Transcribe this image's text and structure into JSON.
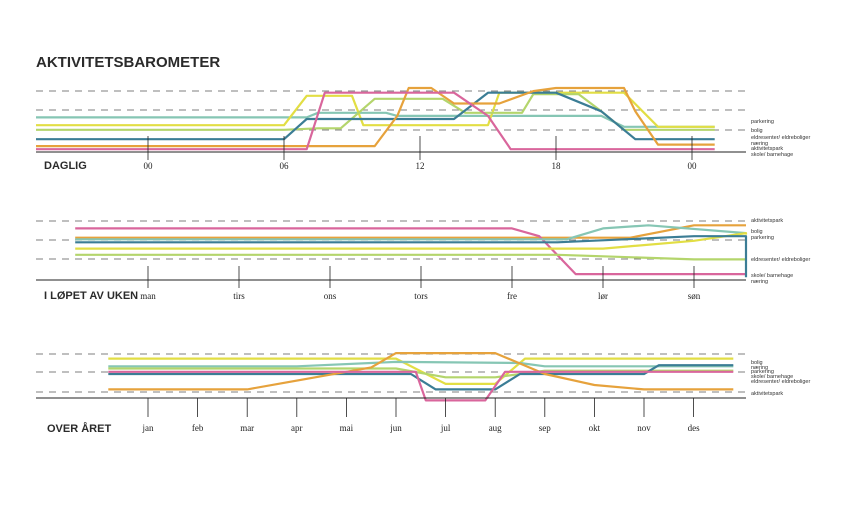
{
  "title": "AKTIVITETSBAROMETER",
  "series_colors": {
    "parkering": "#e2de44",
    "bolig": "#86c6b4",
    "eldresenter": "#b4d56c",
    "naering": "#3b7d95",
    "aktivitetspark": "#e6a23c",
    "skole": "#d9669c"
  },
  "chart_data": [
    {
      "type": "line",
      "section_label": "DAGLIG",
      "x_ticks": [
        "00",
        "06",
        "12",
        "18",
        "00"
      ],
      "legend": [
        {
          "key": "parkering",
          "label": "parkering"
        },
        {
          "key": "bolig",
          "label": "bolig"
        },
        {
          "key": "eldresenter",
          "label": "eldresenter/ eldreboliger"
        },
        {
          "key": "naering",
          "label": "næring"
        },
        {
          "key": "aktivitetspark",
          "label": "aktivitetspark"
        },
        {
          "key": "skole",
          "label": "skole/ barnehage"
        }
      ],
      "series": [
        {
          "key": "bolig",
          "points": [
            [
              -5,
              2.1
            ],
            [
              7,
              2.1
            ],
            [
              7.5,
              2.4
            ],
            [
              10.5,
              2.4
            ],
            [
              11,
              2.2
            ],
            [
              20,
              2.2
            ],
            [
              21,
              1.5
            ],
            [
              25,
              1.5
            ]
          ]
        },
        {
          "key": "parkering",
          "points": [
            [
              -5,
              1.6
            ],
            [
              6,
              1.6
            ],
            [
              7,
              3.5
            ],
            [
              9,
              3.5
            ],
            [
              9.5,
              1.6
            ],
            [
              15,
              1.6
            ],
            [
              15.5,
              3.7
            ],
            [
              21,
              3.7
            ],
            [
              22.5,
              1.5
            ],
            [
              25,
              1.5
            ]
          ]
        },
        {
          "key": "eldresenter",
          "points": [
            [
              -5,
              1.3
            ],
            [
              6,
              1.3
            ],
            [
              7.5,
              1.4
            ],
            [
              8.5,
              1.4
            ],
            [
              10,
              3.3
            ],
            [
              13,
              3.3
            ],
            [
              14,
              2.4
            ],
            [
              16.5,
              2.4
            ],
            [
              17,
              3.6
            ],
            [
              19,
              3.6
            ],
            [
              20,
              2.5
            ],
            [
              21,
              1.3
            ],
            [
              25,
              1.3
            ]
          ]
        },
        {
          "key": "naering",
          "points": [
            [
              -5,
              0.7
            ],
            [
              6,
              0.7
            ],
            [
              7,
              2.0
            ],
            [
              13.5,
              2.0
            ],
            [
              15,
              3.7
            ],
            [
              18,
              3.7
            ],
            [
              20,
              2.5
            ],
            [
              21.5,
              0.7
            ],
            [
              25,
              0.7
            ]
          ]
        },
        {
          "key": "aktivitetspark",
          "points": [
            [
              -5,
              0.25
            ],
            [
              10,
              0.25
            ],
            [
              11,
              2.2
            ],
            [
              11.5,
              4.0
            ],
            [
              12.5,
              4.0
            ],
            [
              13.5,
              3.0
            ],
            [
              15.5,
              3.0
            ],
            [
              17,
              3.8
            ],
            [
              18,
              4.0
            ],
            [
              21,
              4.0
            ],
            [
              21.5,
              2.5
            ],
            [
              22.5,
              0.35
            ],
            [
              25,
              0.35
            ]
          ]
        },
        {
          "key": "skole",
          "points": [
            [
              -5,
              0.05
            ],
            [
              7,
              0.05
            ],
            [
              7.8,
              3.7
            ],
            [
              13.5,
              3.7
            ],
            [
              15,
              2.2
            ],
            [
              16,
              0.05
            ],
            [
              25,
              0.05
            ]
          ]
        }
      ]
    },
    {
      "type": "line",
      "section_label": "I LØPET AV UKEN",
      "x_ticks": [
        "man",
        "tirs",
        "ons",
        "tors",
        "fre",
        "lør",
        "søn"
      ],
      "legend": [
        {
          "key": "aktivitetspark",
          "label": "aktivitetspark"
        },
        {
          "key": "bolig",
          "label": "bolig"
        },
        {
          "key": "parkering",
          "label": "parkering"
        },
        {
          "key": "eldresenter",
          "label": "eldresenter/ eldreboliger"
        },
        {
          "key": "skole",
          "label": "skole/ barnehage"
        },
        {
          "key": "naering",
          "label": "næring"
        }
      ],
      "series": [
        {
          "key": "aktivitetspark",
          "points": [
            [
              -0.8,
              2.6
            ],
            [
              5.3,
              2.6
            ],
            [
              6,
              3.4
            ],
            [
              7.5,
              3.4
            ]
          ]
        },
        {
          "key": "skole",
          "points": [
            [
              -0.8,
              3.2
            ],
            [
              4,
              3.2
            ],
            [
              4.3,
              2.7
            ],
            [
              4.7,
              0.25
            ],
            [
              7.5,
              0.25
            ]
          ]
        },
        {
          "key": "bolig",
          "points": [
            [
              -0.8,
              2.5
            ],
            [
              4.6,
              2.5
            ],
            [
              5,
              3.2
            ],
            [
              5.5,
              3.4
            ],
            [
              7.5,
              2.9
            ]
          ]
        },
        {
          "key": "parkering",
          "points": [
            [
              -0.8,
              1.9
            ],
            [
              5,
              1.9
            ],
            [
              6,
              2.4
            ],
            [
              7,
              2.9
            ],
            [
              7.5,
              2.8
            ]
          ]
        },
        {
          "key": "eldresenter",
          "points": [
            [
              -0.8,
              1.5
            ],
            [
              4.5,
              1.5
            ],
            [
              6,
              1.2
            ],
            [
              7.5,
              1.2
            ]
          ]
        },
        {
          "key": "naering",
          "points": [
            [
              -0.8,
              2.3
            ],
            [
              4.5,
              2.3
            ],
            [
              6,
              2.7
            ],
            [
              6.6,
              2.7
            ],
            [
              6.9,
              0.05
            ],
            [
              7.5,
              0.05
            ]
          ]
        }
      ]
    },
    {
      "type": "line",
      "section_label": "OVER ÅRET",
      "x_ticks": [
        "jan",
        "feb",
        "mar",
        "apr",
        "mai",
        "jun",
        "jul",
        "aug",
        "sep",
        "okt",
        "nov",
        "des"
      ],
      "legend": [
        {
          "key": "bolig",
          "label": "bolig"
        },
        {
          "key": "naering",
          "label": "næring"
        },
        {
          "key": "parkering",
          "label": "parkering"
        },
        {
          "key": "skole",
          "label": "skole/ barnehage"
        },
        {
          "key": "eldresenter",
          "label": "eldresenter/ eldreboliger"
        },
        {
          "key": "aktivitetspark",
          "label": "aktivitetspark"
        }
      ],
      "series": [
        {
          "key": "parkering",
          "points": [
            [
              -0.8,
              3.4
            ],
            [
              5,
              3.4
            ],
            [
              6,
              1.1
            ],
            [
              7,
              1.1
            ],
            [
              7.6,
              3.4
            ],
            [
              11.8,
              3.4
            ]
          ]
        },
        {
          "key": "bolig",
          "points": [
            [
              -0.8,
              2.7
            ],
            [
              3,
              2.7
            ],
            [
              5,
              3.1
            ],
            [
              7.5,
              3.0
            ],
            [
              8,
              2.7
            ],
            [
              11.8,
              2.7
            ]
          ]
        },
        {
          "key": "eldresenter",
          "points": [
            [
              -0.8,
              2.5
            ],
            [
              5,
              2.5
            ],
            [
              6,
              1.7
            ],
            [
              7,
              1.7
            ],
            [
              8,
              2.3
            ],
            [
              11.8,
              2.3
            ]
          ]
        },
        {
          "key": "naering",
          "points": [
            [
              -0.8,
              2.0
            ],
            [
              5.3,
              2.0
            ],
            [
              5.8,
              0.6
            ],
            [
              7,
              0.6
            ],
            [
              7.5,
              2.0
            ],
            [
              10,
              2.0
            ],
            [
              10.3,
              2.8
            ],
            [
              11.8,
              2.8
            ]
          ]
        },
        {
          "key": "aktivitetspark",
          "points": [
            [
              -0.8,
              0.6
            ],
            [
              2,
              0.6
            ],
            [
              3.5,
              1.8
            ],
            [
              4.5,
              2.6
            ],
            [
              5,
              3.9
            ],
            [
              7,
              3.9
            ],
            [
              8,
              2.0
            ],
            [
              9,
              1.0
            ],
            [
              10,
              0.6
            ],
            [
              11.8,
              0.6
            ]
          ]
        },
        {
          "key": "skole",
          "points": [
            [
              -0.8,
              2.2
            ],
            [
              5.4,
              2.2
            ],
            [
              5.6,
              -0.4
            ],
            [
              6.8,
              -0.4
            ],
            [
              7.2,
              2.2
            ],
            [
              11.8,
              2.2
            ]
          ]
        }
      ]
    }
  ]
}
